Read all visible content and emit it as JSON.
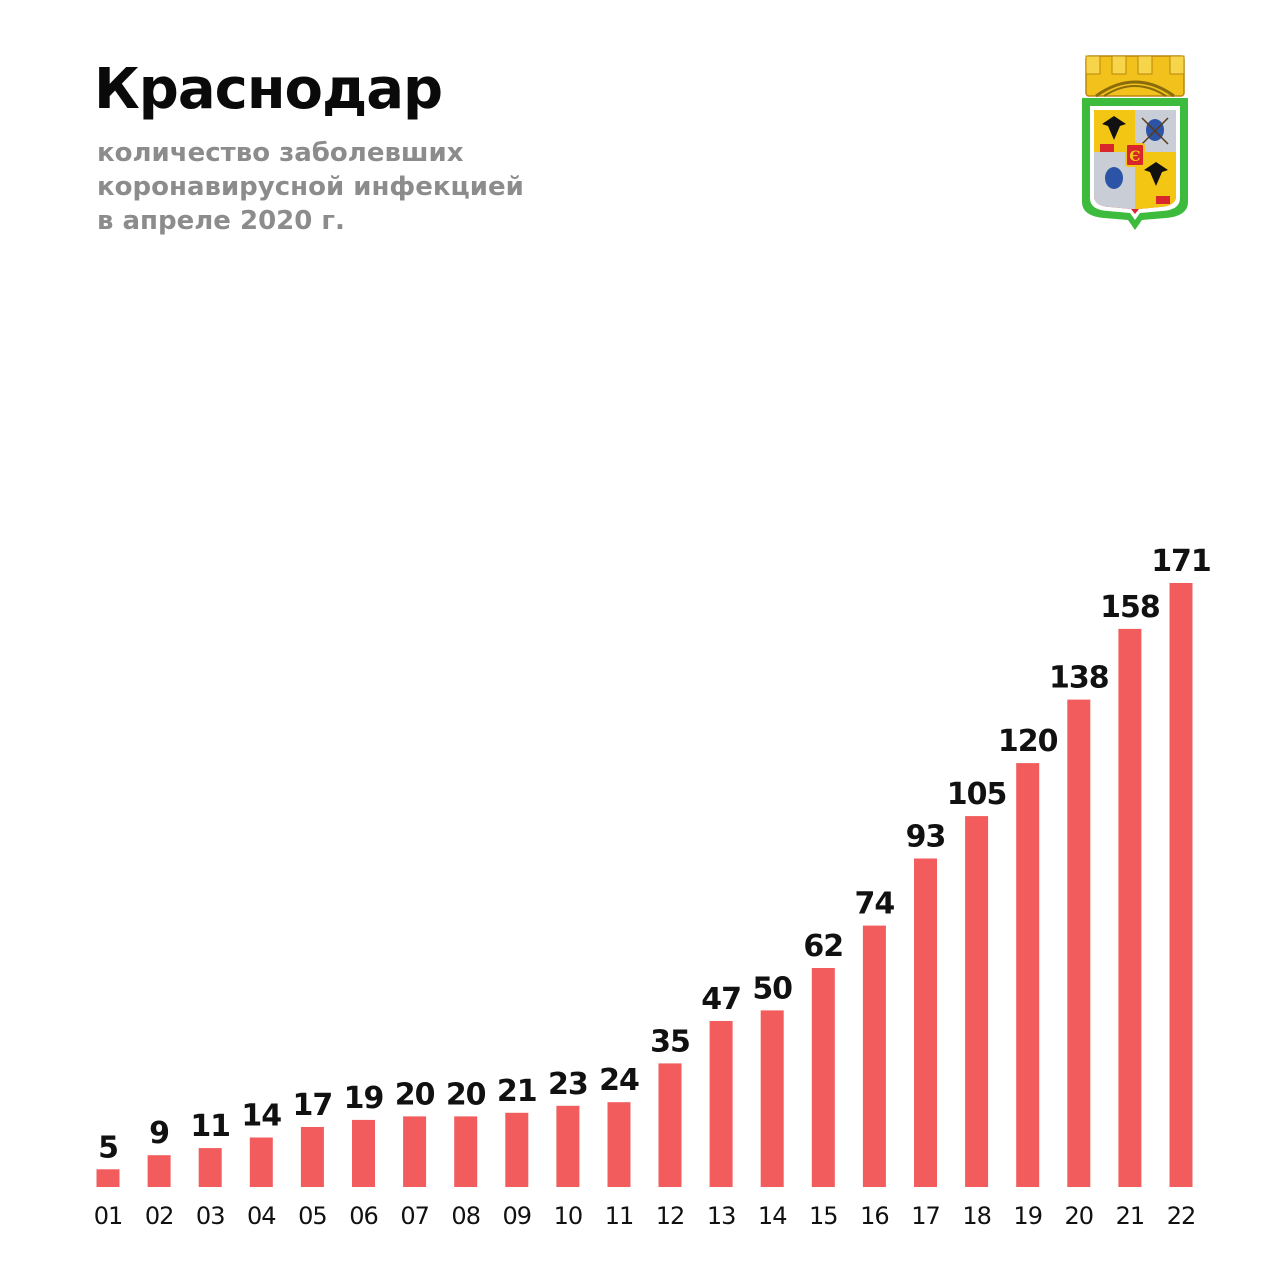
{
  "header": {
    "title": "Краснодар",
    "subtitle_lines": [
      "количество заболевших",
      "коронавирусной инфекцией",
      "в апреле 2020 г."
    ]
  },
  "emblem": {
    "icon": "krasnodar-coat-of-arms-icon",
    "colors": {
      "border": "#3dbb3d",
      "crown": "#f2c11c",
      "red": "#d8262c",
      "blue": "#2b53a6",
      "silver": "#c9ced6",
      "gold": "#f3c614"
    }
  },
  "colors": {
    "bar": "#f25c5c",
    "text": "#111111",
    "subtitle": "#8c8c8c"
  },
  "chart_data": {
    "type": "bar",
    "title": "",
    "xlabel": "",
    "ylabel": "",
    "categories": [
      "01",
      "02",
      "03",
      "04",
      "05",
      "06",
      "07",
      "08",
      "09",
      "10",
      "11",
      "12",
      "13",
      "14",
      "15",
      "16",
      "17",
      "18",
      "19",
      "20",
      "21",
      "22"
    ],
    "values": [
      5,
      9,
      11,
      14,
      17,
      19,
      20,
      20,
      21,
      23,
      24,
      35,
      47,
      50,
      62,
      74,
      93,
      105,
      120,
      138,
      158,
      171
    ],
    "value_labels": "shown above bars",
    "ylim": [
      0,
      171
    ],
    "grid": false,
    "legend": "none"
  }
}
